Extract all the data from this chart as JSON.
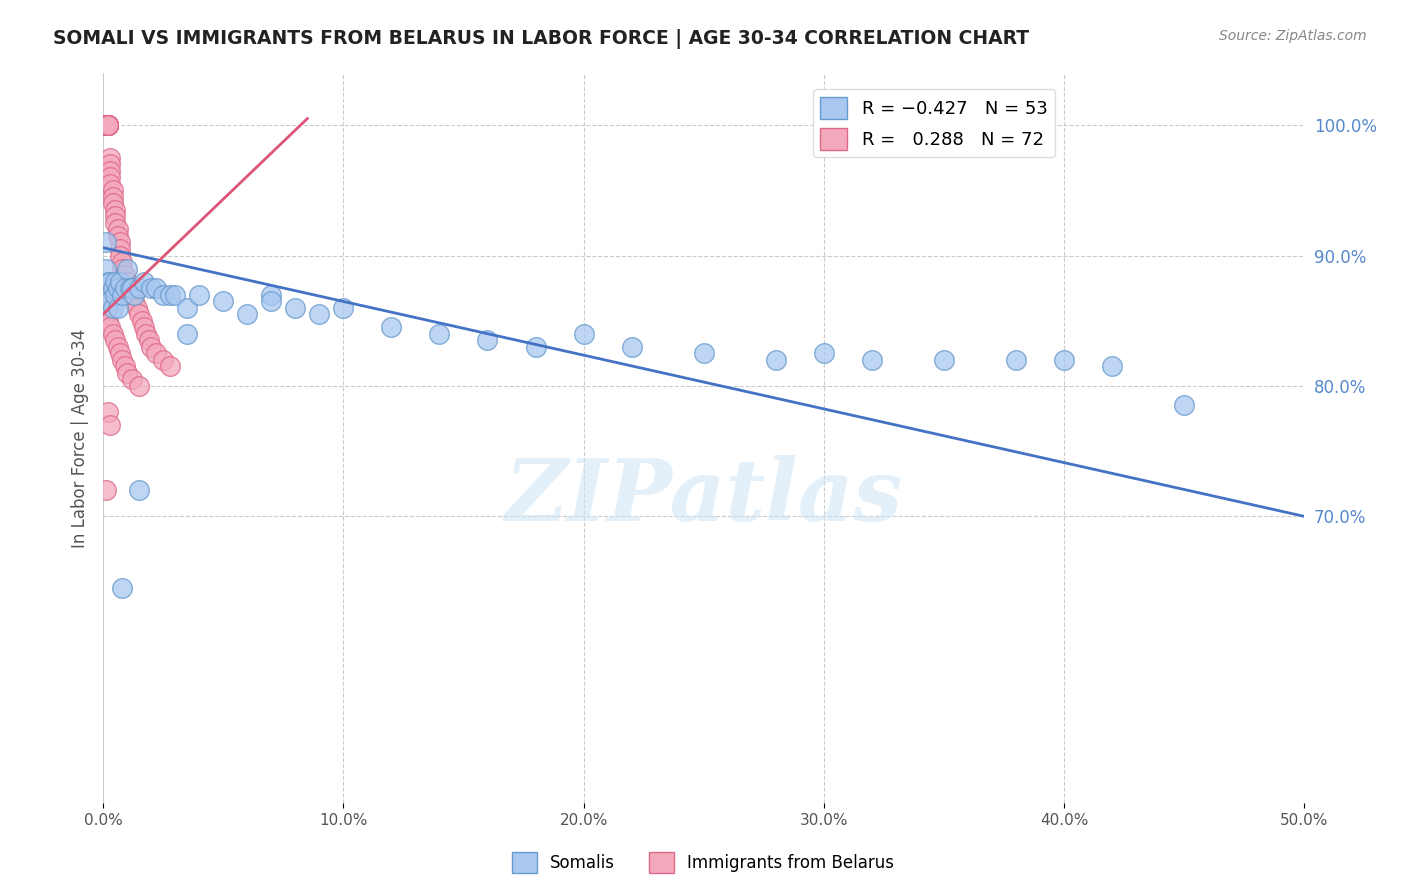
{
  "title": "SOMALI VS IMMIGRANTS FROM BELARUS IN LABOR FORCE | AGE 30-34 CORRELATION CHART",
  "source": "Source: ZipAtlas.com",
  "ylabel": "In Labor Force | Age 30-34",
  "xlim": [
    0.0,
    0.5
  ],
  "ylim": [
    0.48,
    1.04
  ],
  "blue_color": "#a8c8f0",
  "pink_color": "#f4a8bc",
  "blue_edge": "#6699cc",
  "pink_edge": "#dd6688",
  "trend_blue": "#4472c4",
  "trend_pink": "#dd5577",
  "watermark": "ZIPatlas",
  "background": "#ffffff",
  "grid_color": "#cccccc",
  "right_label_color": "#5588cc",
  "right_yticks": [
    0.7,
    0.8,
    0.9,
    1.0
  ],
  "right_yticklabels": [
    "70.0%",
    "80.0%",
    "90.0%",
    "100.0%"
  ],
  "xticks": [
    0.0,
    0.1,
    0.2,
    0.3,
    0.4,
    0.5
  ],
  "xticklabels": [
    "0.0%",
    "10.0%",
    "20.0%",
    "30.0%",
    "40.0%",
    "50.0%"
  ],
  "somali_x": [
    0.001,
    0.001,
    0.002,
    0.002,
    0.003,
    0.003,
    0.004,
    0.004,
    0.005,
    0.005,
    0.006,
    0.006,
    0.007,
    0.008,
    0.009,
    0.01,
    0.011,
    0.012,
    0.013,
    0.015,
    0.017,
    0.02,
    0.022,
    0.025,
    0.028,
    0.03,
    0.035,
    0.04,
    0.05,
    0.06,
    0.07,
    0.08,
    0.09,
    0.1,
    0.12,
    0.14,
    0.16,
    0.18,
    0.2,
    0.22,
    0.25,
    0.28,
    0.3,
    0.32,
    0.35,
    0.38,
    0.4,
    0.42,
    0.45,
    0.07,
    0.035,
    0.015,
    0.008
  ],
  "somali_y": [
    0.91,
    0.89,
    0.88,
    0.87,
    0.88,
    0.865,
    0.875,
    0.86,
    0.87,
    0.88,
    0.875,
    0.86,
    0.88,
    0.87,
    0.875,
    0.89,
    0.875,
    0.875,
    0.87,
    0.875,
    0.88,
    0.875,
    0.875,
    0.87,
    0.87,
    0.87,
    0.86,
    0.87,
    0.865,
    0.855,
    0.87,
    0.86,
    0.855,
    0.86,
    0.845,
    0.84,
    0.835,
    0.83,
    0.84,
    0.83,
    0.825,
    0.82,
    0.825,
    0.82,
    0.82,
    0.82,
    0.82,
    0.815,
    0.785,
    0.865,
    0.84,
    0.72,
    0.645
  ],
  "belarus_x": [
    0.001,
    0.001,
    0.001,
    0.001,
    0.001,
    0.001,
    0.001,
    0.001,
    0.001,
    0.001,
    0.002,
    0.002,
    0.002,
    0.002,
    0.002,
    0.002,
    0.002,
    0.002,
    0.002,
    0.003,
    0.003,
    0.003,
    0.003,
    0.003,
    0.004,
    0.004,
    0.004,
    0.005,
    0.005,
    0.005,
    0.006,
    0.006,
    0.007,
    0.007,
    0.007,
    0.008,
    0.008,
    0.009,
    0.01,
    0.011,
    0.012,
    0.013,
    0.014,
    0.015,
    0.016,
    0.017,
    0.018,
    0.019,
    0.02,
    0.022,
    0.025,
    0.028,
    0.003,
    0.002,
    0.004,
    0.003,
    0.002,
    0.001,
    0.002,
    0.003,
    0.004,
    0.005,
    0.006,
    0.007,
    0.008,
    0.009,
    0.01,
    0.012,
    0.015,
    0.002,
    0.003,
    0.001
  ],
  "belarus_y": [
    1.0,
    1.0,
    1.0,
    1.0,
    1.0,
    1.0,
    1.0,
    1.0,
    1.0,
    1.0,
    1.0,
    1.0,
    1.0,
    1.0,
    1.0,
    1.0,
    1.0,
    1.0,
    1.0,
    0.975,
    0.97,
    0.965,
    0.96,
    0.955,
    0.95,
    0.945,
    0.94,
    0.935,
    0.93,
    0.925,
    0.92,
    0.915,
    0.91,
    0.905,
    0.9,
    0.895,
    0.89,
    0.885,
    0.88,
    0.875,
    0.87,
    0.865,
    0.86,
    0.855,
    0.85,
    0.845,
    0.84,
    0.835,
    0.83,
    0.825,
    0.82,
    0.815,
    0.87,
    0.875,
    0.87,
    0.865,
    0.86,
    0.855,
    0.85,
    0.845,
    0.84,
    0.835,
    0.83,
    0.825,
    0.82,
    0.815,
    0.81,
    0.805,
    0.8,
    0.78,
    0.77,
    0.72
  ],
  "blue_trendline_x": [
    0.0,
    0.5
  ],
  "blue_trendline_y": [
    0.906,
    0.7
  ],
  "pink_trendline_x": [
    0.0,
    0.085
  ],
  "pink_trendline_y": [
    0.855,
    1.005
  ]
}
